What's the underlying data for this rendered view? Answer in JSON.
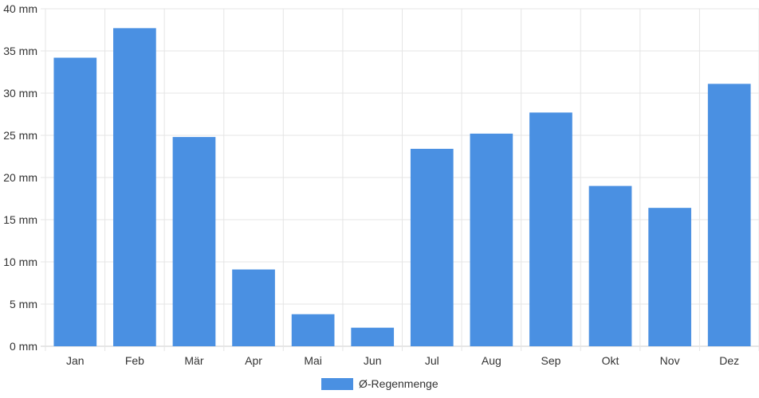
{
  "chart_data": {
    "type": "bar",
    "categories": [
      "Jan",
      "Feb",
      "Mär",
      "Apr",
      "Mai",
      "Jun",
      "Jul",
      "Aug",
      "Sep",
      "Okt",
      "Nov",
      "Dez"
    ],
    "series": [
      {
        "name": "Ø-Regenmenge",
        "values": [
          34.2,
          37.7,
          24.8,
          9.1,
          3.8,
          2.2,
          23.4,
          25.2,
          27.7,
          19.0,
          16.4,
          31.1
        ],
        "color": "#4a90e2"
      }
    ],
    "y_unit": "mm",
    "y_ticks": [
      "0 mm",
      "5 mm",
      "10 mm",
      "15 mm",
      "20 mm",
      "25 mm",
      "30 mm",
      "35 mm",
      "40 mm"
    ],
    "ylim": [
      0,
      40
    ],
    "grid": true,
    "legend_position": "bottom-center"
  }
}
